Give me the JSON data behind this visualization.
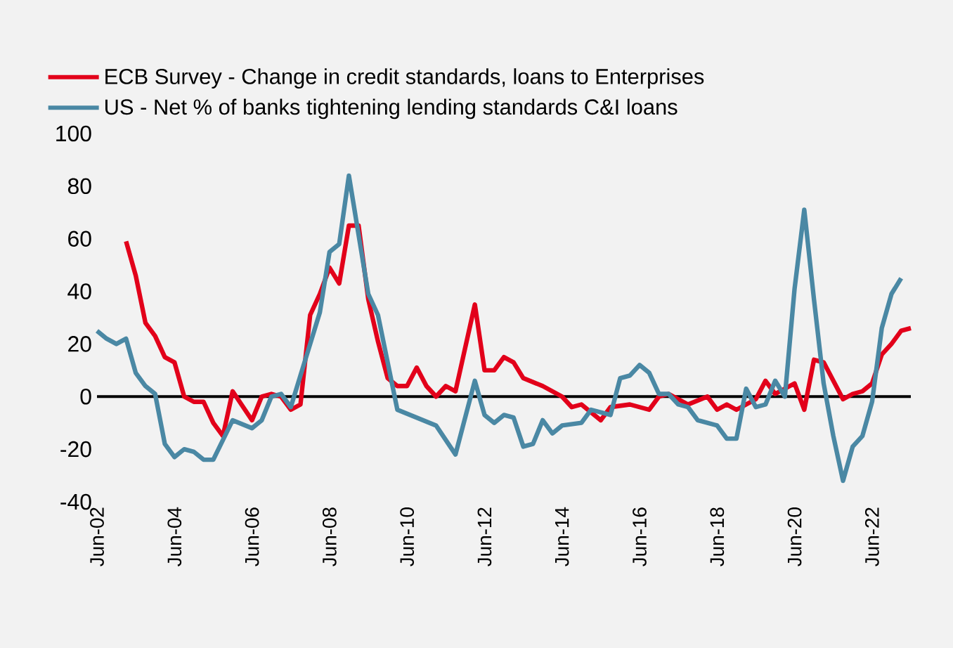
{
  "chart_data": {
    "type": "line",
    "series": [
      {
        "name": "ECB Survey - Change in credit standards, loans to Enterprises",
        "color": "#e2001a",
        "x": [
          "2003-03",
          "2003-06",
          "2003-09",
          "2003-12",
          "2004-03",
          "2004-06",
          "2004-09",
          "2004-12",
          "2005-03",
          "2005-06",
          "2005-09",
          "2005-12",
          "2006-06",
          "2006-09",
          "2006-12",
          "2007-03",
          "2007-06",
          "2007-09",
          "2007-12",
          "2008-03",
          "2008-06",
          "2008-09",
          "2008-12",
          "2009-03",
          "2009-06",
          "2009-09",
          "2009-12",
          "2010-03",
          "2010-06",
          "2010-09",
          "2010-12",
          "2011-03",
          "2011-06",
          "2011-09",
          "2012-03",
          "2012-06",
          "2012-09",
          "2012-12",
          "2013-03",
          "2013-06",
          "2013-12",
          "2014-06",
          "2014-09",
          "2014-12",
          "2015-06",
          "2015-09",
          "2016-03",
          "2016-09",
          "2016-12",
          "2017-03",
          "2017-06",
          "2017-09",
          "2018-03",
          "2018-06",
          "2018-09",
          "2018-12",
          "2019-06",
          "2019-09",
          "2019-12",
          "2020-06",
          "2020-09",
          "2020-12",
          "2021-03",
          "2021-09",
          "2021-12",
          "2022-03",
          "2022-06",
          "2022-09",
          "2022-12",
          "2023-03",
          "2023-06"
        ],
        "values": [
          59,
          46,
          28,
          23,
          15,
          13,
          0,
          -2,
          -2,
          -10,
          -15,
          2,
          -9,
          0,
          1,
          0,
          -5,
          -3,
          31,
          39,
          49,
          43,
          65,
          65,
          37,
          21,
          7,
          4,
          4,
          11,
          4,
          0,
          4,
          2,
          35,
          10,
          10,
          15,
          13,
          7,
          4,
          0,
          -4,
          -3,
          -9,
          -4,
          -3,
          -5,
          0,
          1,
          -1,
          -3,
          0,
          -5,
          -3,
          -5,
          -1,
          6,
          1,
          5,
          -5,
          14,
          13,
          -1,
          1,
          2,
          5,
          16,
          20,
          25,
          26
        ]
      },
      {
        "name": "US - Net % of banks tightening lending standards C&I loans",
        "color": "#4a88a4",
        "x": [
          "2002-06",
          "2002-09",
          "2002-12",
          "2003-03",
          "2003-06",
          "2003-09",
          "2003-12",
          "2004-03",
          "2004-06",
          "2004-09",
          "2004-12",
          "2005-03",
          "2005-06",
          "2005-12",
          "2006-06",
          "2006-09",
          "2006-12",
          "2007-03",
          "2007-06",
          "2008-03",
          "2008-06",
          "2008-09",
          "2008-12",
          "2009-06",
          "2009-09",
          "2010-03",
          "2011-03",
          "2011-09",
          "2012-03",
          "2012-06",
          "2012-09",
          "2012-12",
          "2013-03",
          "2013-06",
          "2013-09",
          "2013-12",
          "2014-03",
          "2014-06",
          "2014-12",
          "2015-03",
          "2015-09",
          "2015-12",
          "2016-03",
          "2016-06",
          "2016-09",
          "2016-12",
          "2017-03",
          "2017-06",
          "2017-09",
          "2017-12",
          "2018-06",
          "2018-09",
          "2018-12",
          "2019-03",
          "2019-06",
          "2019-09",
          "2019-12",
          "2020-03",
          "2020-06",
          "2020-09",
          "2020-12",
          "2021-03",
          "2021-06",
          "2021-09",
          "2021-12",
          "2022-03",
          "2022-06",
          "2022-09",
          "2022-12",
          "2023-03"
        ],
        "values": [
          25,
          22,
          20,
          22,
          9,
          4,
          1,
          -18,
          -23,
          -20,
          -21,
          -24,
          -24,
          -9,
          -12,
          -9,
          0,
          1,
          -4,
          32,
          55,
          58,
          84,
          39,
          31,
          -5,
          -11,
          -22,
          6,
          -7,
          -10,
          -7,
          -8,
          -19,
          -18,
          -9,
          -14,
          -11,
          -10,
          -5,
          -7,
          7,
          8,
          12,
          9,
          1,
          1,
          -3,
          -4,
          -9,
          -11,
          -16,
          -16,
          3,
          -4,
          -3,
          6,
          0,
          41,
          71,
          37,
          5,
          -15,
          -32,
          -19,
          -15,
          -2,
          26,
          39,
          45
        ]
      }
    ],
    "xlim": [
      "2002-06",
      "2023-06"
    ],
    "xticks": [
      {
        "value": "2002-06",
        "label": "Jun-02"
      },
      {
        "value": "2004-06",
        "label": "Jun-04"
      },
      {
        "value": "2006-06",
        "label": "Jun-06"
      },
      {
        "value": "2008-06",
        "label": "Jun-08"
      },
      {
        "value": "2010-06",
        "label": "Jun-10"
      },
      {
        "value": "2012-06",
        "label": "Jun-12"
      },
      {
        "value": "2014-06",
        "label": "Jun-14"
      },
      {
        "value": "2016-06",
        "label": "Jun-16"
      },
      {
        "value": "2018-06",
        "label": "Jun-18"
      },
      {
        "value": "2020-06",
        "label": "Jun-20"
      },
      {
        "value": "2022-06",
        "label": "Jun-22"
      }
    ],
    "ylim": [
      -40,
      100
    ],
    "yticks": [
      -40,
      -20,
      0,
      20,
      40,
      60,
      80,
      100
    ],
    "ref_lines": [
      {
        "axis": "y",
        "value": 0,
        "color": "#000000"
      }
    ],
    "legend": "top"
  }
}
